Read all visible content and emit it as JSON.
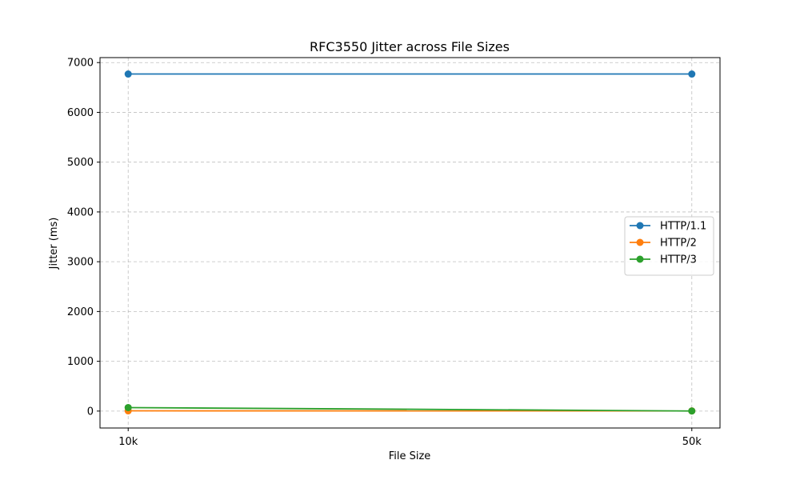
{
  "chart_data": {
    "type": "line",
    "title": "RFC3550 Jitter across File Sizes",
    "xlabel": "File Size",
    "ylabel": "Jitter (ms)",
    "categories": [
      "10k",
      "50k"
    ],
    "ylim": [
      -340,
      7100
    ],
    "yticks": [
      0,
      1000,
      2000,
      3000,
      4000,
      5000,
      6000,
      7000
    ],
    "grid": true,
    "legend_position": "center-right",
    "series": [
      {
        "name": "HTTP/1.1",
        "color": "#1f77b4",
        "values": [
          6770,
          6770
        ]
      },
      {
        "name": "HTTP/2",
        "color": "#ff7f0e",
        "values": [
          5,
          3
        ]
      },
      {
        "name": "HTTP/3",
        "color": "#2ca02c",
        "values": [
          70,
          2
        ]
      }
    ]
  }
}
